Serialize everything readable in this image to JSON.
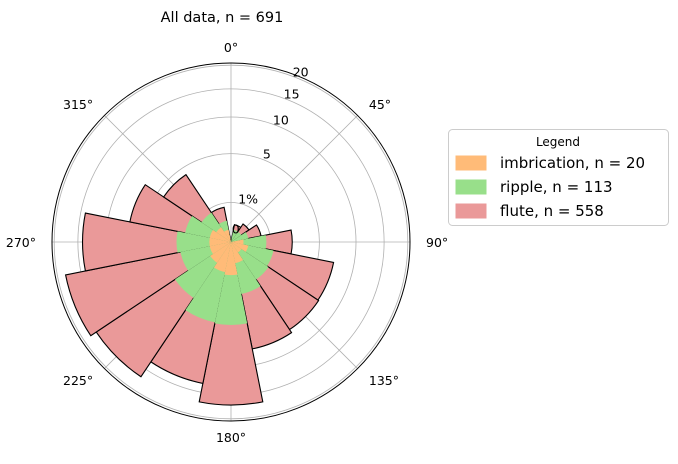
{
  "chart_data": {
    "type": "polar-stacked-bar",
    "title": "All data, n = 691",
    "theta_direction": "clockwise",
    "theta_zero": "N",
    "bin_width_deg": 22.5,
    "angle_ticks": [
      "0°",
      "45°",
      "90°",
      "135°",
      "180°",
      "225°",
      "270°",
      "315°"
    ],
    "radial_ticks": [
      {
        "value": 0,
        "label": "0"
      },
      {
        "value": 1,
        "label": "1%"
      },
      {
        "value": 5,
        "label": "5"
      },
      {
        "value": 10,
        "label": "10"
      },
      {
        "value": 15,
        "label": "15"
      },
      {
        "value": 20,
        "label": "20"
      }
    ],
    "radial_scale": "sqrt",
    "rmax": 20.5,
    "bin_centers": [
      0,
      22.5,
      45,
      67.5,
      90,
      112.5,
      135,
      157.5,
      180,
      202.5,
      225,
      247.5,
      270,
      292.5,
      315,
      337.5
    ],
    "series": [
      {
        "name": "imbrication, n = 20",
        "color": "#ffbb78",
        "values": [
          0,
          0,
          0,
          0,
          0.1,
          0.2,
          0.1,
          0.3,
          0.7,
          0.6,
          0.4,
          0.3,
          0.3,
          0.3,
          0.2,
          0.1
        ]
      },
      {
        "name": "ripple, n = 113",
        "color": "#98df8a",
        "values": [
          0,
          0.1,
          0.1,
          0.2,
          0.7,
          1.0,
          1.2,
          1.5,
          3.7,
          3.7,
          2.5,
          1.4,
          1.6,
          1.1,
          0.6,
          0.2
        ]
      },
      {
        "name": "flute, n = 558",
        "color": "#ea9999",
        "values": [
          0,
          0.1,
          0.2,
          0.4,
          1.6,
          5.8,
          5.8,
          5.8,
          12.6,
          9.0,
          13.9,
          16.5,
          12.2,
          5.4,
          3.4,
          0.5
        ]
      }
    ],
    "legend": {
      "title": "Legend",
      "placement": "right"
    },
    "grid": true
  }
}
